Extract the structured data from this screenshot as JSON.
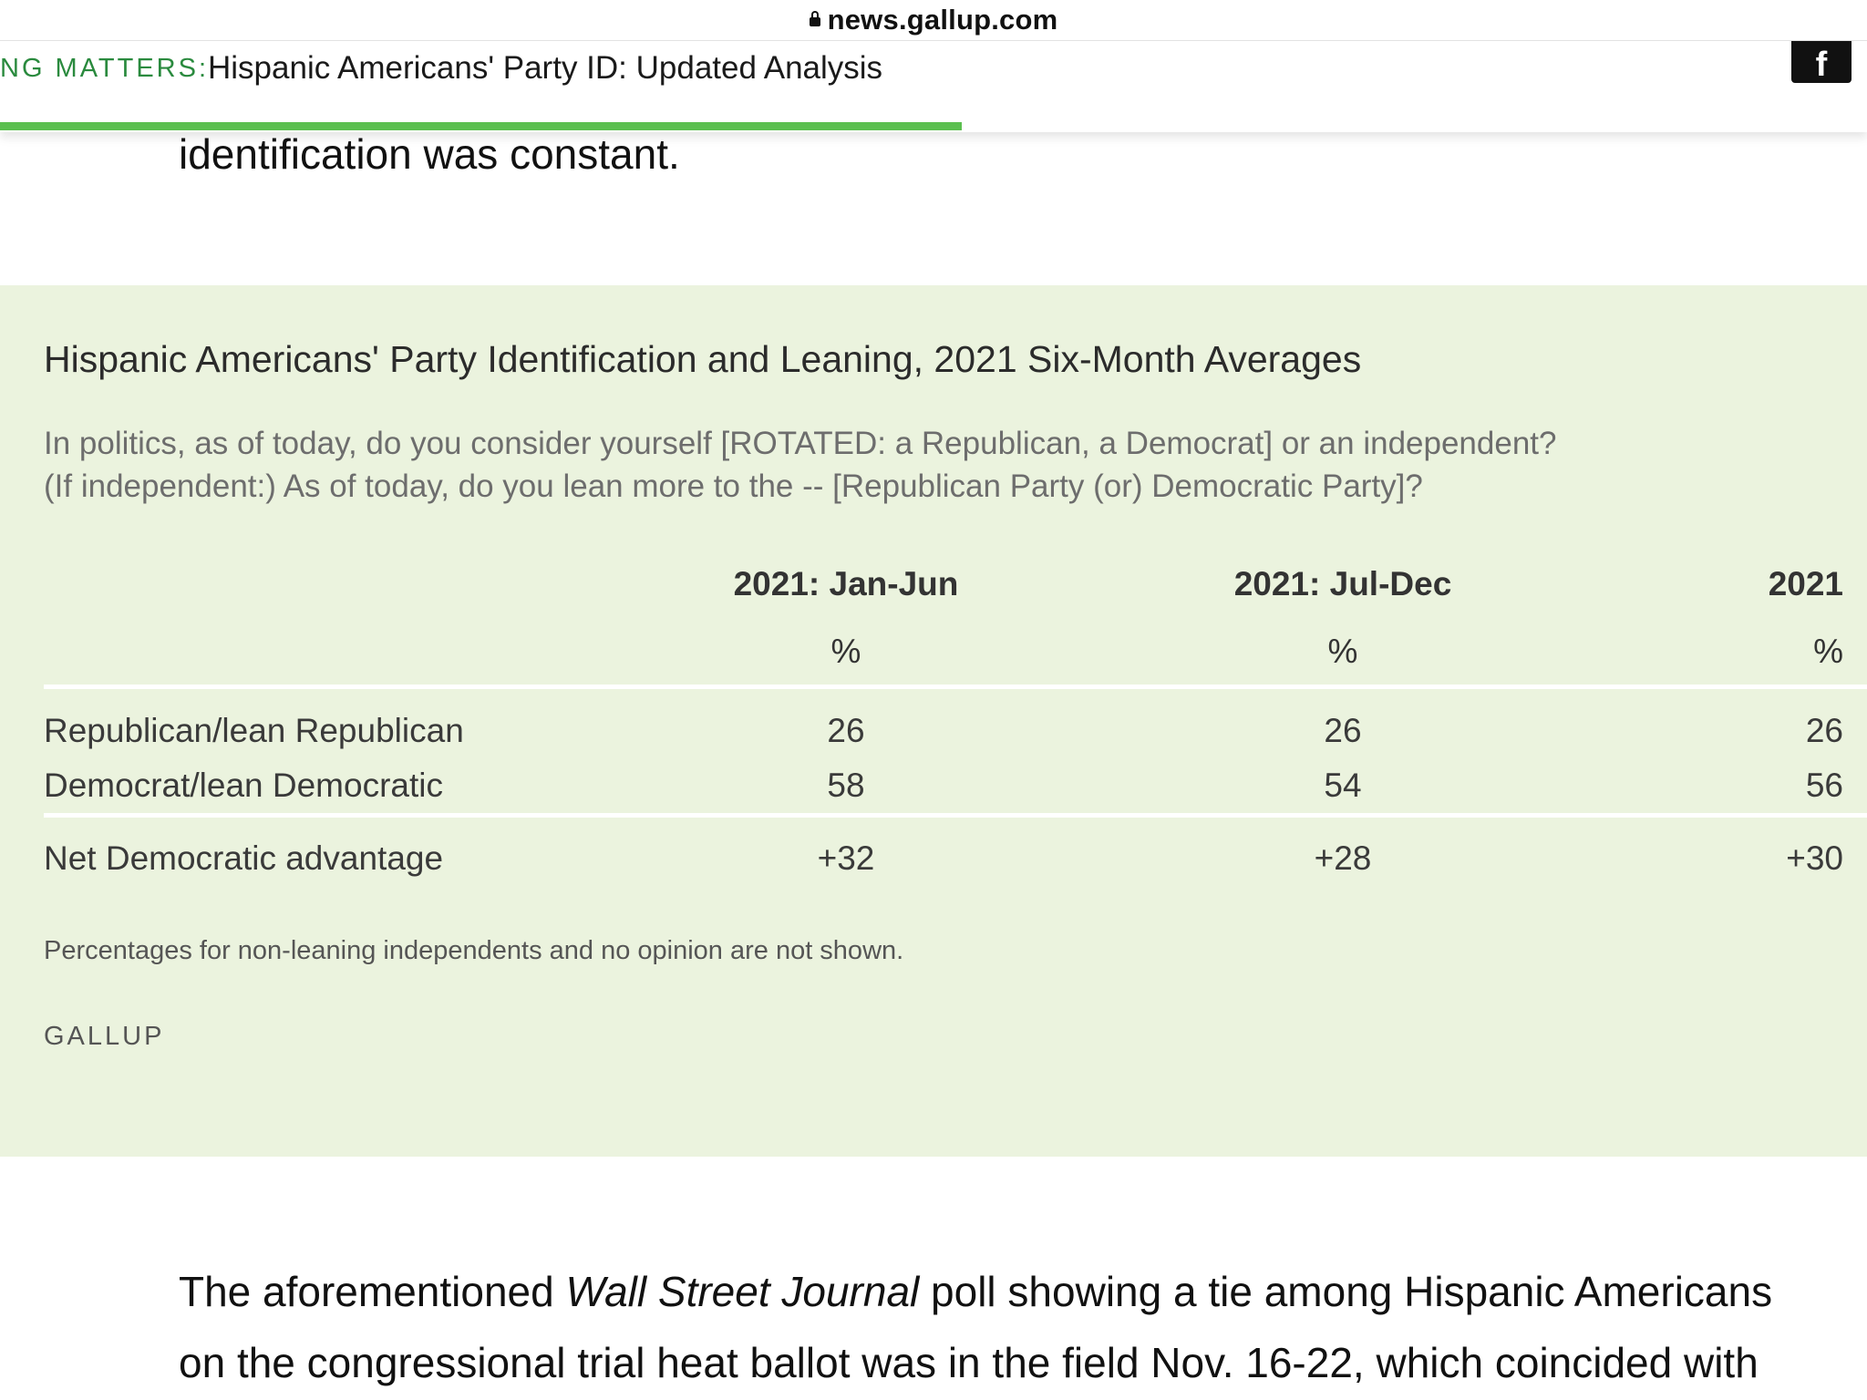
{
  "browser": {
    "host": "news.gallup.com"
  },
  "sticky_header": {
    "kicker": "NG MATTERS:",
    "headline": "Hispanic Americans' Party ID: Updated Analysis",
    "share_icon_glyph": "f",
    "read_progress_percent": 51.5,
    "accent_color": "#5bbf4f"
  },
  "article": {
    "para_before": "identification was constant.",
    "para_after": {
      "line1_prefix": "The aforementioned ",
      "line1_italic": "Wall Street Journal",
      "line1_suffix": " poll showing a tie among Hispanic Americans",
      "line2": "on the congressional trial heat ballot was in the field Nov. 16-22, which coincided with"
    }
  },
  "table_panel": {
    "background": "#ebf3de",
    "title": "Hispanic Americans' Party Identification and Leaning, 2021 Six-Month Averages",
    "question_line1": "In politics, as of today, do you consider yourself [ROTATED: a Republican, a Democrat] or an independent?",
    "question_line2": "(If independent:) As of today, do you lean more to the -- [Republican Party (or) Democratic Party]?",
    "columns": [
      "2021: Jan-Jun",
      "2021: Jul-Dec",
      "2021"
    ],
    "units": [
      "%",
      "%",
      "%"
    ],
    "rows": [
      {
        "label": "Republican/lean Republican",
        "values": [
          "26",
          "26",
          "26"
        ]
      },
      {
        "label": "Democrat/lean Democratic",
        "values": [
          "58",
          "54",
          "56"
        ]
      }
    ],
    "net_row": {
      "label": "Net Democratic advantage",
      "values": [
        "+32",
        "+28",
        "+30"
      ]
    },
    "note": "Percentages for non-leaning independents and no opinion are not shown.",
    "source": "GALLUP"
  }
}
